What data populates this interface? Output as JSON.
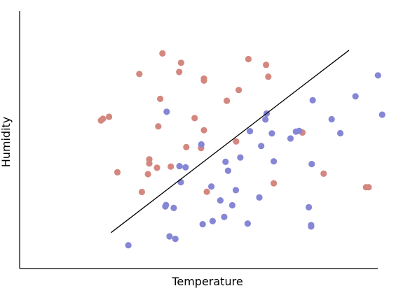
{
  "chart_data": {
    "type": "scatter",
    "title": "",
    "xlabel": "Temperature",
    "ylabel": "Humidity",
    "xlim": [
      0,
      100
    ],
    "ylim": [
      0,
      100
    ],
    "grid": false,
    "ticks_visible": false,
    "series": [
      {
        "color": "#d4877f",
        "points": [
          [
            13.1,
            60.8
          ],
          [
            13.7,
            61.5
          ],
          [
            15.6,
            62.4
          ],
          [
            18.2,
            38.1
          ],
          [
            25.0,
            81.1
          ],
          [
            25.8,
            29.5
          ],
          [
            27.7,
            37.3
          ],
          [
            28.1,
            42.0
          ],
          [
            28.1,
            43.8
          ],
          [
            30.5,
            40.1
          ],
          [
            30.9,
            58.2
          ],
          [
            31.5,
            70.2
          ],
          [
            32.2,
            90.1
          ],
          [
            34.8,
            40.6
          ],
          [
            37.4,
            82.0
          ],
          [
            38.0,
            86.0
          ],
          [
            39.6,
            49.1
          ],
          [
            42.2,
            61.8
          ],
          [
            44.2,
            48.7
          ],
          [
            45.1,
            78.2
          ],
          [
            45.1,
            79.1
          ],
          [
            45.1,
            56.5
          ],
          [
            46.0,
            29.6
          ],
          [
            52.2,
            69.4
          ],
          [
            55.1,
            51.6
          ],
          [
            55.9,
            74.1
          ],
          [
            58.9,
            87.6
          ],
          [
            64.4,
            85.1
          ],
          [
            65.1,
            79.9
          ],
          [
            66.8,
            33.3
          ],
          [
            75.7,
            55.5
          ],
          [
            82.3,
            37.5
          ],
          [
            95.5,
            31.6
          ],
          [
            96.3,
            31.6
          ]
        ]
      },
      {
        "color": "#8686d6",
        "points": [
          [
            21.6,
            6.2
          ],
          [
            33.1,
            23.2
          ],
          [
            33.3,
            23.8
          ],
          [
            33.5,
            64.6
          ],
          [
            34.4,
            10.1
          ],
          [
            35.7,
            22.5
          ],
          [
            36.2,
            9.0
          ],
          [
            37.5,
            40.8
          ],
          [
            37.9,
            33.8
          ],
          [
            39.4,
            40.3
          ],
          [
            44.3,
            50.3
          ],
          [
            44.7,
            15.4
          ],
          [
            47.4,
            31.9
          ],
          [
            47.8,
            16.8
          ],
          [
            50.2,
            25.8
          ],
          [
            51.4,
            18.6
          ],
          [
            51.8,
            42.7
          ],
          [
            52.6,
            38.8
          ],
          [
            53.9,
            23.7
          ],
          [
            55.0,
            30.3
          ],
          [
            56.4,
            44.6
          ],
          [
            58.7,
            15.7
          ],
          [
            59.4,
            56.1
          ],
          [
            62.3,
            27.1
          ],
          [
            62.9,
            49.6
          ],
          [
            64.2,
            61.2
          ],
          [
            64.6,
            63.8
          ],
          [
            66.2,
            55.1
          ],
          [
            66.8,
            42.9
          ],
          [
            72.0,
            52.9
          ],
          [
            73.7,
            55.9
          ],
          [
            74.7,
            56.2
          ],
          [
            77.7,
            22.8
          ],
          [
            78.4,
            15.0
          ],
          [
            78.4,
            14.4
          ],
          [
            78.6,
            41.7
          ],
          [
            78.9,
            69.6
          ],
          [
            84.8,
            61.3
          ],
          [
            87.5,
            55.2
          ],
          [
            92.2,
            71.3
          ],
          [
            99.2,
            80.5
          ],
          [
            100.5,
            63.3
          ]
        ]
      }
    ],
    "line": {
      "color": "#000000",
      "points": [
        [
          16.2,
          11.7
        ],
        [
          90.2,
          91.5
        ]
      ]
    }
  }
}
